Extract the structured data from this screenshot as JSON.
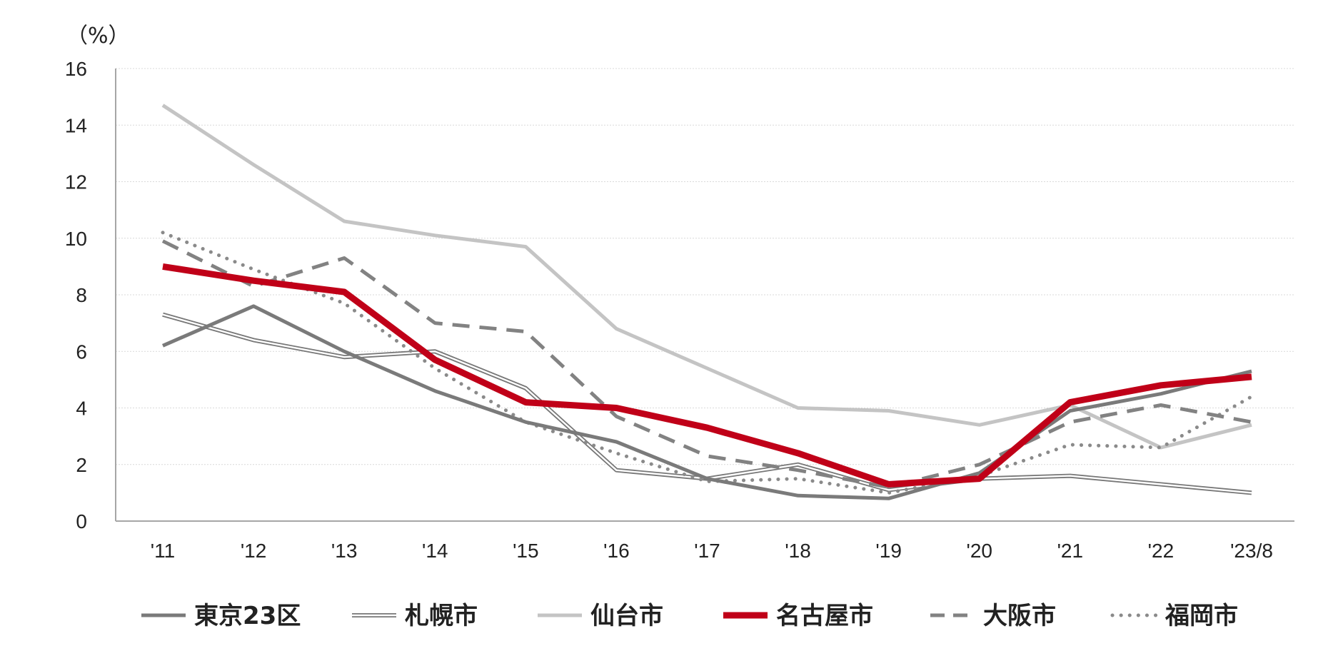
{
  "chart_data": {
    "type": "line",
    "title": "",
    "unit_label": "（%）",
    "xlabel": "",
    "ylabel": "",
    "ylim": [
      0,
      16
    ],
    "yticks": [
      0,
      2,
      4,
      6,
      8,
      10,
      12,
      14,
      16
    ],
    "grid": true,
    "legend_position": "bottom",
    "categories": [
      "'11",
      "'12",
      "'13",
      "'14",
      "'15",
      "'16",
      "'17",
      "'18",
      "'19",
      "'20",
      "'21",
      "'22",
      "'23/8"
    ],
    "series": [
      {
        "name": "東京23区",
        "values": [
          6.2,
          7.6,
          6.0,
          4.6,
          3.5,
          2.8,
          1.5,
          0.9,
          0.8,
          1.7,
          3.9,
          4.5,
          5.3
        ],
        "color": "#7a7a7a",
        "style": "solid-thick"
      },
      {
        "name": "札幌市",
        "values": [
          7.3,
          6.4,
          5.8,
          6.0,
          4.7,
          1.8,
          1.5,
          2.0,
          1.1,
          1.5,
          1.6,
          1.3,
          1.0
        ],
        "color": "#777777",
        "style": "double"
      },
      {
        "name": "仙台市",
        "values": [
          14.7,
          12.6,
          10.6,
          10.1,
          9.7,
          6.8,
          5.4,
          4.0,
          3.9,
          3.4,
          4.1,
          2.6,
          3.4
        ],
        "color": "#c4c4c4",
        "style": "solid"
      },
      {
        "name": "名古屋市",
        "values": [
          9.0,
          8.5,
          8.1,
          5.7,
          4.2,
          4.0,
          3.3,
          2.4,
          1.3,
          1.5,
          4.2,
          4.8,
          5.1
        ],
        "color": "#c00018",
        "style": "solid-heavy"
      },
      {
        "name": "大阪市",
        "values": [
          9.9,
          8.3,
          9.3,
          7.0,
          6.7,
          3.7,
          2.3,
          1.8,
          1.2,
          2.0,
          3.5,
          4.1,
          3.5
        ],
        "color": "#828282",
        "style": "dashed"
      },
      {
        "name": "福岡市",
        "values": [
          10.2,
          8.9,
          7.7,
          5.4,
          3.5,
          2.4,
          1.4,
          1.5,
          1.0,
          1.6,
          2.7,
          2.6,
          4.4
        ],
        "color": "#8a8a8a",
        "style": "dotted"
      }
    ]
  }
}
